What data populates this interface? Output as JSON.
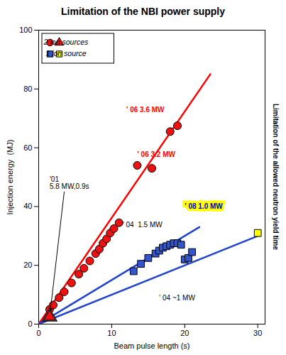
{
  "chart_data": {
    "type": "scatter",
    "title": "Limitation of the NBI power supply",
    "side_label": "Limitation of the allowed neutron yield time",
    "xlabel": "Beam pulse length (s)",
    "ylabel": "Injection energy  (MJ)",
    "xlim": [
      0,
      31
    ],
    "ylim": [
      0,
      100
    ],
    "xticks": [
      0,
      10,
      20,
      30
    ],
    "yticks": [
      0,
      20,
      40,
      60,
      80,
      100
    ],
    "legend": "upper left",
    "series": [
      {
        "type": "line",
        "color": "#ff0000",
        "x": [
          0,
          23.5
        ],
        "values": [
          0,
          85
        ]
      },
      {
        "type": "line",
        "color": "#2244cc",
        "x": [
          0,
          22
        ],
        "values": [
          0,
          33
        ]
      },
      {
        "type": "line",
        "color": "#2244cc",
        "x": [
          0,
          30
        ],
        "values": [
          0,
          30
        ]
      },
      {
        "name": "2 ion sources",
        "type": "scatter",
        "marker": "circle",
        "color": "#ee1111",
        "x": [
          1.5,
          2.0,
          2.8,
          3.5,
          4.5,
          5.5,
          6.2,
          7.0,
          7.8,
          8.3,
          8.8,
          9.3,
          9.8,
          10.3,
          11.0,
          13.5,
          15.5,
          18.0,
          19.0
        ],
        "values": [
          5.0,
          6.5,
          9.0,
          11.0,
          14.0,
          17.0,
          19.0,
          21.5,
          24.0,
          25.5,
          27.5,
          29.0,
          31.0,
          32.5,
          34.5,
          54.0,
          53.0,
          65.5,
          67.5
        ]
      },
      {
        "name": "1 ion source",
        "type": "scatter",
        "marker": "square",
        "color": "#3355cc",
        "x": [
          13.0,
          14.0,
          15.0,
          16.0,
          16.5,
          17.0,
          17.5,
          18.0,
          18.5,
          19.0,
          19.5,
          20.0,
          20.5,
          21.0
        ],
        "values": [
          18.0,
          20.5,
          22.5,
          24.0,
          25.0,
          26.0,
          26.5,
          27.0,
          27.5,
          27.5,
          27.0,
          22.0,
          22.5,
          24.5
        ]
      },
      {
        "name": "1 ion source",
        "type": "scatter",
        "marker": "square",
        "color": "#ffff00",
        "x": [
          30.0
        ],
        "values": [
          31.0
        ]
      },
      {
        "type": "scatter",
        "marker": "triangle",
        "color": "#ffffff",
        "x": [
          1.5
        ],
        "values": [
          2.5
        ]
      },
      {
        "name": "2 ion sources",
        "type": "scatter",
        "marker": "triangle",
        "color": "#ee1111",
        "x": [
          1.5
        ],
        "values": [
          2.5
        ]
      }
    ],
    "annotations": [
      {
        "text": "'01\n5.8 MW,0.9s",
        "x": 1.5,
        "y": 46,
        "arrow_from": [
          3.5,
          45
        ],
        "arrow_to": [
          1.5,
          2.5
        ]
      },
      {
        "text": "' 06 3.6 MW",
        "x": 12.0,
        "y": 72,
        "color": "#ff0000"
      },
      {
        "text": "' 06 3.2 MW",
        "x": 13.5,
        "y": 57,
        "color": "#ff0000"
      },
      {
        "text": "' 04  1.5 MW",
        "x": 11.5,
        "y": 33
      },
      {
        "text": "' 04 ~1 MW",
        "x": 16.5,
        "y": 8
      },
      {
        "text": "' 08 1.0 MW",
        "x": 20.0,
        "y": 40,
        "color": "#0000cc",
        "background": "#ffff00"
      }
    ]
  }
}
